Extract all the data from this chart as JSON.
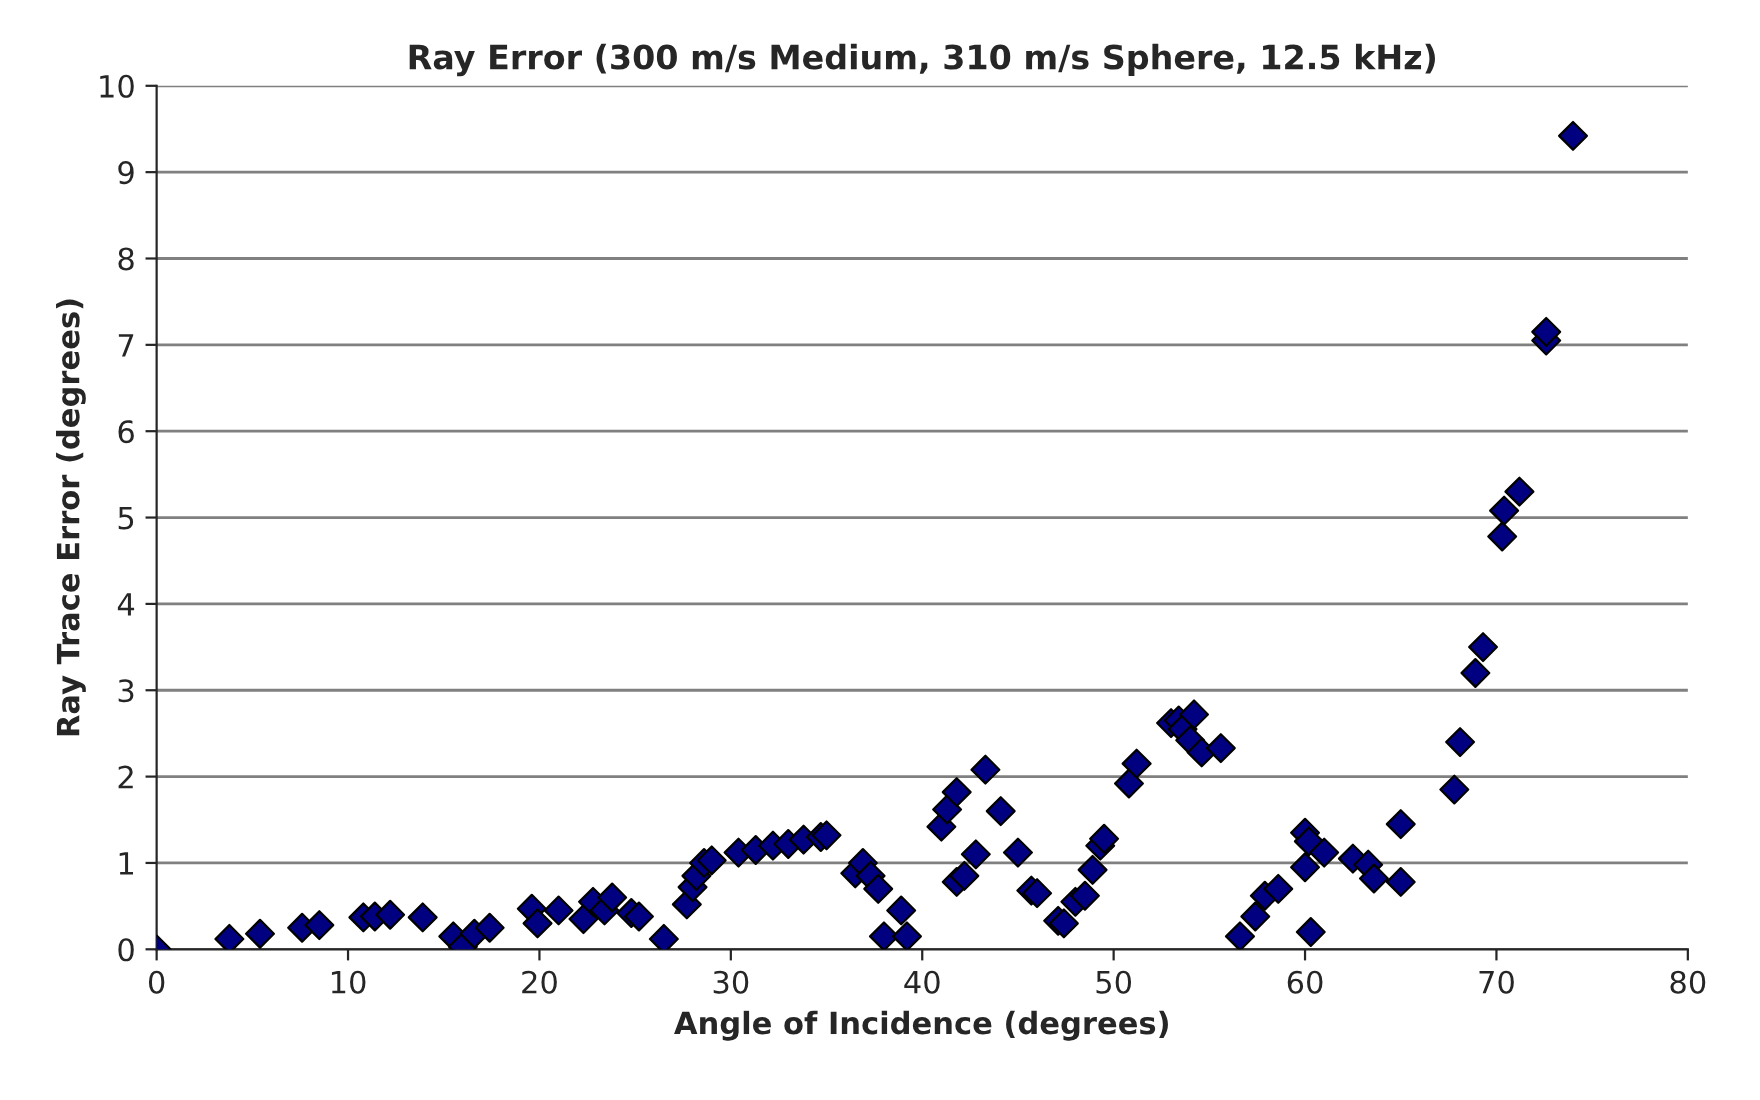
{
  "chart_data": {
    "type": "scatter",
    "title": "Ray Error (300 m/s Medium, 310 m/s Sphere, 12.5 kHz)",
    "xlabel": "Angle of Incidence (degrees)",
    "ylabel": "Ray Trace Error (degrees)",
    "series": [
      {
        "color": "#000080",
        "x": [
          0,
          3.8,
          5.4,
          7.6,
          8.5,
          10.8,
          11.4,
          12.2,
          13.9,
          15.5,
          16,
          16.6,
          17.4,
          19.6,
          19.9,
          21,
          22.3,
          22.8,
          23.4,
          23.8,
          24.8,
          25.2,
          26.5,
          27.7,
          28,
          28.2,
          28.6,
          29,
          30.4,
          31.3,
          32.2,
          33,
          33.8,
          34.7,
          35,
          36.5,
          36.9,
          37.3,
          37.7,
          38,
          38.9,
          39.2,
          41,
          41.3,
          41.8,
          41.8,
          42.2,
          42.8,
          43.3,
          44.1,
          45,
          45.7,
          46,
          47.1,
          47.4,
          48,
          48.5,
          48.9,
          49.3,
          49.5,
          50.8,
          51.2,
          53,
          53.4,
          53.6,
          54,
          54.2,
          54.6,
          55.6,
          56.6,
          57.4,
          57.9,
          58.6,
          60,
          60,
          60.2,
          60.3,
          61,
          62.5,
          63.3,
          63.6,
          65,
          65,
          67.8,
          68.1,
          68.9,
          69.3,
          70.3,
          70.4,
          71.2,
          72.6,
          72.6,
          74
        ],
        "values": [
          0,
          0.12,
          0.18,
          0.25,
          0.28,
          0.37,
          0.38,
          0.4,
          0.37,
          0.15,
          0.03,
          0.18,
          0.25,
          0.47,
          0.3,
          0.45,
          0.35,
          0.55,
          0.45,
          0.6,
          0.42,
          0.38,
          0.12,
          0.52,
          0.72,
          0.85,
          1.0,
          1.03,
          1.12,
          1.15,
          1.2,
          1.22,
          1.27,
          1.3,
          1.32,
          0.88,
          1.0,
          0.85,
          0.7,
          0.15,
          0.45,
          0.15,
          1.42,
          1.62,
          1.82,
          0.78,
          0.85,
          1.1,
          2.08,
          1.6,
          1.12,
          0.68,
          0.65,
          0.33,
          0.3,
          0.55,
          0.62,
          0.92,
          1.2,
          1.28,
          1.92,
          2.15,
          2.62,
          2.65,
          2.55,
          2.42,
          2.72,
          2.28,
          2.33,
          0.15,
          0.38,
          0.62,
          0.7,
          1.35,
          0.95,
          1.25,
          0.2,
          1.12,
          1.05,
          0.98,
          0.82,
          0.78,
          1.45,
          1.85,
          2.4,
          3.2,
          3.5,
          4.78,
          5.08,
          5.3,
          7.05,
          7.15,
          9.42
        ]
      }
    ],
    "marker": "diamond",
    "xlim": [
      0,
      80
    ],
    "xticks": [
      0,
      10,
      20,
      30,
      40,
      50,
      60,
      70,
      80
    ],
    "ylim": [
      0,
      10
    ],
    "yticks": [
      0,
      1,
      2,
      3,
      4,
      5,
      6,
      7,
      8,
      9,
      10
    ],
    "grid": "y",
    "legend": false
  }
}
